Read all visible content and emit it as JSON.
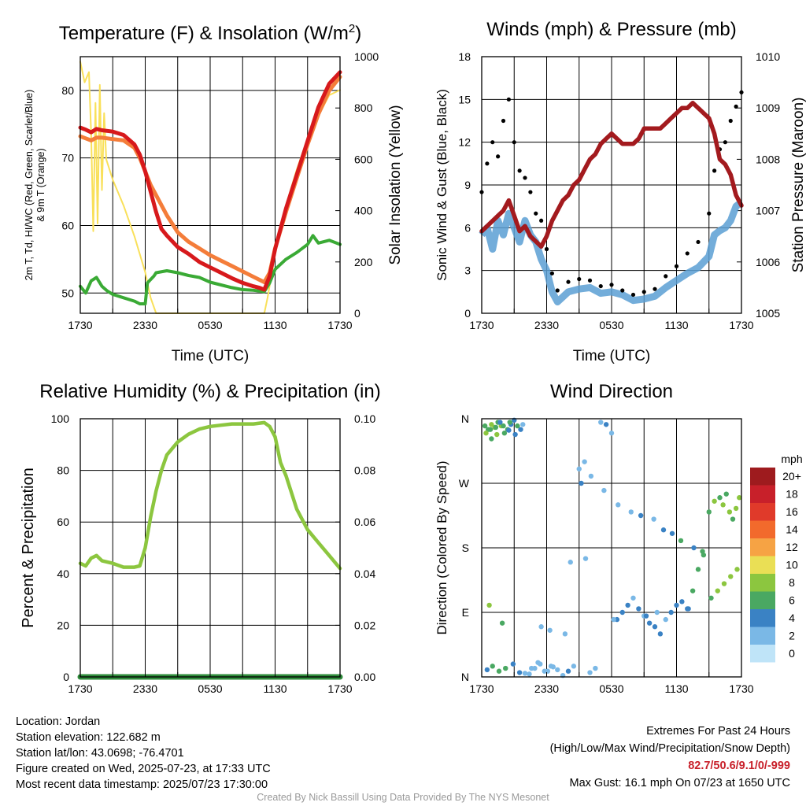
{
  "chart_data": [
    {
      "type": "line",
      "title": "Temperature (F) & Insolation (W/m²)",
      "title_main": "Temperature (F) & Insolation (W/m",
      "title_sup": "2",
      "title_end": ")",
      "xlabel": "Time (UTC)",
      "ylabel_lines": [
        "2m T, Td, HI/WC (Red, Green, Scarlet/Blue)",
        "& 9m T (Orange)"
      ],
      "ylabel_right": "Solar Insolation (Yellow)",
      "x_ticks": [
        "1730",
        "2330",
        "0530",
        "1130",
        "1730"
      ],
      "x_range_hours": [
        0,
        24
      ],
      "ylim": [
        47,
        85
      ],
      "y_ticks": [
        50,
        60,
        70,
        80
      ],
      "ylim_right": [
        0,
        1000
      ],
      "y_ticks_right": [
        0,
        200,
        400,
        600,
        800,
        1000
      ],
      "series": [
        {
          "name": "2m T",
          "color": "#d7191c",
          "axis": "left",
          "x": [
            0,
            0.5,
            1,
            1.5,
            2,
            3,
            4,
            5,
            5.5,
            6,
            6.5,
            7,
            7.5,
            8,
            9,
            10,
            11,
            12,
            13,
            14,
            15,
            16,
            16.5,
            17,
            17.5,
            18,
            19,
            20,
            21,
            22,
            23,
            24
          ],
          "values": [
            74.5,
            74.2,
            73.8,
            74.3,
            74.1,
            73.9,
            73.4,
            72.0,
            70.5,
            68.0,
            65.0,
            62.0,
            59.5,
            58.5,
            56.8,
            55.8,
            54.6,
            53.8,
            53.0,
            52.2,
            51.5,
            51.0,
            50.8,
            50.5,
            52.5,
            56.5,
            62.5,
            67.5,
            72.5,
            77.5,
            81.0,
            82.7
          ]
        },
        {
          "name": "9m T",
          "color": "#f47d3a",
          "axis": "left",
          "x": [
            0,
            0.5,
            1,
            1.5,
            2,
            3,
            4,
            5,
            5.5,
            6,
            6.5,
            7,
            7.5,
            8,
            9,
            10,
            11,
            12,
            13,
            14,
            15,
            16,
            16.5,
            17,
            17.5,
            18,
            19,
            20,
            21,
            22,
            23,
            24
          ],
          "values": [
            73.2,
            72.9,
            72.6,
            73.0,
            73.0,
            72.8,
            72.6,
            71.5,
            70.0,
            68.0,
            66.0,
            64.5,
            63.0,
            61.5,
            59.0,
            57.6,
            56.6,
            55.6,
            54.8,
            54.0,
            53.2,
            52.4,
            52.0,
            51.6,
            53.0,
            56.6,
            62.0,
            67.0,
            72.0,
            76.5,
            80.0,
            82.0
          ]
        },
        {
          "name": "Td",
          "color": "#3aaa35",
          "axis": "left",
          "x": [
            0,
            0.5,
            1,
            1.5,
            2,
            2.5,
            3,
            4,
            5,
            5.5,
            6,
            6.2,
            6.8,
            7,
            8,
            9,
            10,
            11,
            12,
            13,
            14,
            15,
            16,
            17,
            17.5,
            18,
            19,
            20,
            21,
            21.5,
            22,
            23,
            24
          ],
          "values": [
            51.0,
            50.0,
            51.8,
            52.3,
            51.0,
            50.3,
            49.8,
            49.3,
            48.8,
            48.4,
            48.4,
            51.5,
            52.5,
            53.0,
            53.3,
            53.0,
            52.6,
            52.3,
            51.6,
            51.2,
            50.8,
            50.5,
            50.4,
            50.2,
            51.5,
            53.5,
            55.0,
            56.0,
            57.2,
            58.5,
            57.4,
            57.8,
            57.2
          ]
        },
        {
          "name": "Solar Insolation",
          "color": "#f9e05a",
          "axis": "right",
          "x": [
            0,
            0.4,
            0.8,
            1.0,
            1.2,
            1.4,
            1.6,
            1.8,
            2.0,
            2.2,
            2.4,
            3.0,
            4.0,
            5.0,
            6.0,
            6.5,
            7.0,
            12.0,
            17.0,
            17.3,
            18.0,
            19.0,
            20.0,
            21.0,
            22.0,
            23.0,
            24.0
          ],
          "values": [
            980,
            900,
            940,
            700,
            320,
            820,
            350,
            890,
            480,
            780,
            600,
            520,
            420,
            300,
            160,
            60,
            0,
            0,
            0,
            60,
            230,
            420,
            560,
            680,
            770,
            850,
            870
          ]
        }
      ]
    },
    {
      "type": "line",
      "title": "Winds (mph) & Pressure (mb)",
      "xlabel": "Time (UTC)",
      "ylabel": "Sonic Wind & Gust (Blue, Black)",
      "ylabel_right": "Station Pressure (Maroon)",
      "x_ticks": [
        "1730",
        "2330",
        "0530",
        "1130",
        "1730"
      ],
      "x_range_hours": [
        0,
        24
      ],
      "ylim": [
        0,
        18
      ],
      "y_ticks": [
        0,
        3,
        6,
        9,
        12,
        15,
        18
      ],
      "ylim_right": [
        1005,
        1010
      ],
      "y_ticks_right": [
        1005,
        1006,
        1007,
        1008,
        1009,
        1010
      ],
      "series": [
        {
          "name": "Sonic Wind",
          "color": "#5a9fd4",
          "axis": "left",
          "x": [
            0,
            0.5,
            1,
            1.5,
            2,
            2.5,
            3,
            3.5,
            4,
            4.5,
            5,
            5.5,
            6,
            6.5,
            7,
            8,
            9,
            10,
            11,
            12,
            13,
            14,
            15,
            16,
            17,
            18,
            19,
            20,
            21,
            21.5,
            22,
            22.5,
            23,
            23.5,
            24
          ],
          "values": [
            5.5,
            6.0,
            4.5,
            6.5,
            5.5,
            7.0,
            6.0,
            5.0,
            6.5,
            5.5,
            5.0,
            3.8,
            3.0,
            1.5,
            0.8,
            1.5,
            1.7,
            1.8,
            1.4,
            1.5,
            1.3,
            0.9,
            1.0,
            1.2,
            1.8,
            2.3,
            2.8,
            3.2,
            4.0,
            5.5,
            5.8,
            6.0,
            6.5,
            7.5,
            7.8
          ]
        },
        {
          "name": "Gust",
          "color": "#000000",
          "axis": "left",
          "x": [
            0,
            0.5,
            1,
            1.5,
            2,
            2.5,
            3,
            3.5,
            4,
            4.5,
            5,
            5.5,
            6,
            6.5,
            7,
            8,
            9,
            10,
            11,
            12,
            13,
            14,
            15,
            16,
            17,
            18,
            19,
            20,
            21,
            21.5,
            22,
            22.5,
            23,
            23.5,
            24
          ],
          "values": [
            8.5,
            10.5,
            12.0,
            11.0,
            13.5,
            15.0,
            12.0,
            10.0,
            9.5,
            8.5,
            7.0,
            6.5,
            4.5,
            2.8,
            1.6,
            2.2,
            2.4,
            2.3,
            1.9,
            2.0,
            1.6,
            1.3,
            1.5,
            1.7,
            2.6,
            3.3,
            4.2,
            5.0,
            7.0,
            10.0,
            11.5,
            12.0,
            13.5,
            14.5,
            15.5
          ]
        },
        {
          "name": "Station Pressure",
          "color": "#a31a1e",
          "axis": "right",
          "x": [
            0,
            0.5,
            1,
            1.5,
            2,
            2.5,
            3,
            3.5,
            4,
            4.5,
            5,
            5.5,
            6,
            6.5,
            7,
            7.5,
            8,
            8.5,
            9,
            9.5,
            10,
            10.5,
            11,
            11.5,
            12,
            12.5,
            13,
            13.5,
            14,
            14.5,
            15,
            15.5,
            16,
            16.5,
            17,
            17.5,
            18,
            18.5,
            19,
            19.5,
            20,
            20.5,
            21,
            21.5,
            22,
            22.5,
            23,
            23.5,
            24
          ],
          "values": [
            1006.6,
            1006.7,
            1006.8,
            1006.9,
            1007.0,
            1007.2,
            1006.9,
            1006.6,
            1006.7,
            1006.5,
            1006.4,
            1006.3,
            1006.5,
            1006.8,
            1007.0,
            1007.2,
            1007.3,
            1007.5,
            1007.6,
            1007.8,
            1008.0,
            1008.1,
            1008.3,
            1008.4,
            1008.5,
            1008.4,
            1008.3,
            1008.3,
            1008.3,
            1008.4,
            1008.6,
            1008.6,
            1008.6,
            1008.6,
            1008.7,
            1008.8,
            1008.9,
            1009.0,
            1009.0,
            1009.1,
            1009.0,
            1008.9,
            1008.8,
            1008.5,
            1008.0,
            1007.9,
            1007.7,
            1007.3,
            1007.1
          ]
        }
      ]
    },
    {
      "type": "line",
      "title": "Relative Humidity (%) & Precipitation (in)",
      "ylabel": "Percent & Precipitation",
      "x_ticks": [
        "1730",
        "2330",
        "0530",
        "1130",
        "1730"
      ],
      "x_range_hours": [
        0,
        24
      ],
      "ylim": [
        0,
        100
      ],
      "y_ticks": [
        0,
        20,
        40,
        60,
        80,
        100
      ],
      "ylim_right": [
        0,
        0.1
      ],
      "y_ticks_right": [
        "0.00",
        "0.02",
        "0.04",
        "0.06",
        "0.08",
        "0.10"
      ],
      "series": [
        {
          "name": "Relative Humidity",
          "color": "#8cc63f",
          "axis": "left",
          "x": [
            0,
            0.5,
            1,
            1.5,
            2,
            3,
            4,
            5,
            5.5,
            6,
            6.5,
            7,
            7.5,
            8,
            9,
            10,
            11,
            12,
            13,
            14,
            15,
            16,
            17,
            17.5,
            18,
            18.5,
            19,
            20,
            21,
            22,
            23,
            24
          ],
          "values": [
            44,
            43,
            46,
            47,
            45,
            44,
            42.5,
            42.5,
            43,
            50,
            62,
            72,
            80,
            86,
            91,
            94,
            96,
            97,
            97.5,
            98,
            98,
            98,
            98.5,
            97,
            93,
            83,
            78,
            65,
            57,
            52,
            47,
            42
          ]
        },
        {
          "name": "Precipitation",
          "color": "#2e8b3a",
          "axis": "right",
          "x": [
            0,
            24
          ],
          "values": [
            0,
            0
          ]
        }
      ]
    },
    {
      "type": "scatter",
      "title": "Wind Direction",
      "ylabel": "Direction (Colored By Speed)",
      "x_ticks": [
        "1730",
        "2330",
        "0530",
        "1130",
        "1730"
      ],
      "x_range_hours": [
        0,
        24
      ],
      "y_ticks": [
        "N",
        "E",
        "S",
        "W",
        "N"
      ],
      "y_range_degrees": [
        0,
        360
      ],
      "legend": {
        "title": "mph",
        "placement": "right",
        "labels": [
          "20+",
          "18",
          "16",
          "14",
          "12",
          "10",
          "8",
          "6",
          "4",
          "2",
          "0"
        ],
        "colors": [
          "#9e1b1e",
          "#c8202a",
          "#e03a2a",
          "#f26a2c",
          "#f6a344",
          "#eadf55",
          "#8cc63f",
          "#4aa862",
          "#3a82c4",
          "#7ab8e6",
          "#bfe4f8"
        ]
      },
      "points_hour": [
        0.3,
        0.6,
        0.9,
        1.2,
        1.5,
        1.8,
        2.1,
        2.4,
        2.7,
        3.0,
        3.3,
        3.6,
        0.5,
        1.0,
        1.6,
        2.2,
        2.9,
        3.5,
        0.8,
        1.4,
        2.6,
        4.0,
        4.6,
        5.2,
        5.8,
        6.4,
        7.0,
        0.4,
        0.9,
        1.3,
        1.7,
        2.0,
        2.5,
        3.1,
        3.8,
        4.4,
        4.9,
        5.4,
        6.1,
        6.6,
        7.5,
        8.0,
        8.5,
        9.0,
        9.5,
        10.0,
        10.5,
        11.0,
        11.5,
        12.0,
        12.5,
        13.0,
        13.5,
        14.0,
        14.5,
        15.0,
        15.5,
        16.0,
        16.5,
        17.0,
        17.5,
        18.0,
        18.5,
        19.0,
        19.5,
        20.0,
        20.5,
        21.0,
        21.5,
        22.0,
        22.3,
        22.6,
        22.9,
        23.2,
        23.5,
        23.8,
        9.2,
        10.1,
        11.3,
        12.6,
        13.8,
        14.7,
        15.9,
        16.8,
        17.6,
        18.4,
        19.6,
        20.4,
        21.2,
        21.8,
        22.4,
        23.0,
        23.6,
        8.2,
        9.6,
        12.2,
        15.2,
        16.2,
        19.1,
        0.7,
        1.9,
        5.5,
        6.3,
        7.7
      ],
      "points_direction": [
        350,
        345,
        352,
        348,
        355,
        350,
        340,
        345,
        352,
        358,
        350,
        345,
        10,
        15,
        8,
        12,
        18,
        6,
        345,
        338,
        355,
        5,
        12,
        20,
        8,
        15,
        10,
        340,
        332,
        348,
        355,
        350,
        344,
        338,
        352,
        4,
        12,
        18,
        8,
        14,
        2,
        8,
        15,
        290,
        300,
        6,
        12,
        355,
        352,
        340,
        80,
        90,
        100,
        110,
        95,
        85,
        75,
        70,
        60,
        80,
        90,
        100,
        105,
        95,
        120,
        150,
        170,
        230,
        245,
        250,
        240,
        255,
        230,
        220,
        235,
        250,
        270,
        280,
        260,
        240,
        230,
        225,
        220,
        205,
        200,
        190,
        180,
        175,
        110,
        120,
        130,
        140,
        150,
        160,
        165,
        80,
        85,
        90,
        95,
        100,
        75,
        70,
        65,
        60,
        55
      ],
      "points_speed": [
        6,
        5,
        7,
        8,
        6,
        7,
        5,
        6,
        4,
        3,
        5,
        4,
        4,
        5,
        6,
        5,
        4,
        3,
        6,
        7,
        5,
        2,
        1,
        2,
        1,
        2,
        1,
        7,
        6,
        5,
        4,
        5,
        4,
        3,
        2,
        1,
        2,
        1,
        2,
        1,
        2,
        3,
        2,
        1,
        1,
        2,
        1,
        2,
        3,
        2,
        3,
        4,
        3,
        2,
        3,
        2,
        3,
        4,
        3,
        2,
        3,
        4,
        3,
        4,
        5,
        6,
        5,
        6,
        7,
        6,
        7,
        5,
        8,
        6,
        7,
        8,
        3,
        2,
        1,
        1,
        2,
        3,
        2,
        3,
        4,
        5,
        4,
        6,
        6,
        7,
        7,
        8,
        7,
        1,
        2,
        2,
        3,
        2,
        4,
        7,
        6,
        2,
        1,
        2
      ]
    }
  ],
  "footer": {
    "location": "Location: Jordan",
    "elevation": "Station elevation: 122.682 m",
    "latlon": "Station lat/lon: 43.0698; -76.4701",
    "created": "Figure created on Wed, 2025-07-23, at 17:33 UTC",
    "recent": "Most recent data timestamp: 2025/07/23 17:30:00",
    "extremes_title": "Extremes For Past 24 Hours",
    "extremes_subtitle": "(High/Low/Max Wind/Precipitation/Snow Depth)",
    "extremes_values": "82.7/50.6/9.1/0/-999",
    "max_gust": "Max Gust: 16.1 mph On 07/23 at 1650 UTC",
    "credit": "Created By Nick Bassill Using Data Provided By The NYS Mesonet"
  }
}
